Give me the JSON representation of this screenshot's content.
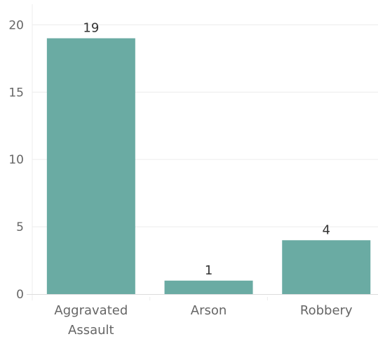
{
  "chart_data": {
    "type": "bar",
    "categories": [
      [
        "Aggravated",
        "Assault"
      ],
      [
        "Arson"
      ],
      [
        "Robbery"
      ]
    ],
    "values": [
      19,
      1,
      4
    ],
    "data_labels": [
      "19",
      "1",
      "4"
    ],
    "yticks": [
      0,
      5,
      10,
      15,
      20
    ],
    "ylim": [
      0,
      20.8
    ],
    "title": "",
    "xlabel": "",
    "ylabel": "",
    "grid": true,
    "legend": "none",
    "bar_color": "#6aaba3",
    "grid_color": "#ececec",
    "tick_color": "#666666"
  }
}
